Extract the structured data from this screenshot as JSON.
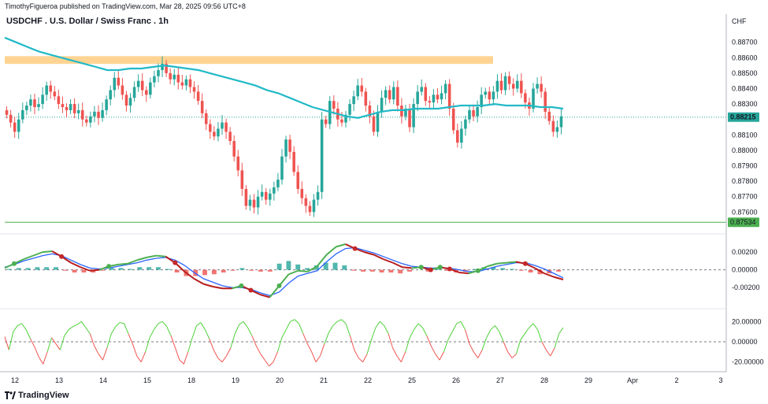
{
  "header": {
    "published": "TimothyFigueroa published on TradingView.com, Mar 28, 2025 09:56 UTC+8",
    "title": "USDCHF . U.S. Dollar / Swiss Franc . 1h",
    "currency": "CHF"
  },
  "footer": {
    "brand": "TradingView",
    "logo": "tradingview-logo-icon"
  },
  "colors": {
    "up": "#26a69a",
    "down": "#ef5350",
    "ma": "#22b9c7",
    "zone": "#ffcc80",
    "support": "#4caf50",
    "macd_fast": "#4caf50",
    "macd_slow": "#2962ff",
    "osc_up": "#4cd137",
    "osc_down": "#ef5350"
  },
  "chart_data": [
    {
      "type": "candlestick",
      "title": "USDCHF . U.S. Dollar / Swiss Franc . 1h",
      "ylim": [
        0.8753,
        0.8878
      ],
      "y_ticks": [
        0.887,
        0.886,
        0.885,
        0.884,
        0.883,
        0.882,
        0.881,
        0.88,
        0.879,
        0.878,
        0.877,
        0.876
      ],
      "y_tick_labels": [
        "0.88700",
        "0.88600",
        "0.88500",
        "0.88400",
        "0.88300",
        "0.88200",
        "0.88100",
        "0.88000",
        "0.87900",
        "0.87800",
        "0.87700",
        "0.87600"
      ],
      "x_labels": [
        "12",
        "13",
        "14",
        "15",
        "18",
        "19",
        "20",
        "21",
        "22",
        "25",
        "26",
        "27",
        "28",
        "29",
        "Apr",
        "2",
        "3"
      ],
      "last_price": 0.88215,
      "last_price_label": "0.88215",
      "support_line": 0.87534,
      "support_label": "0.87534",
      "resistance_zone": [
        0.8856,
        0.8861
      ],
      "close_path": [
        0.8823,
        0.8818,
        0.8812,
        0.882,
        0.8826,
        0.8829,
        0.8833,
        0.8828,
        0.883,
        0.8836,
        0.8842,
        0.8838,
        0.8835,
        0.883,
        0.8828,
        0.8826,
        0.883,
        0.8824,
        0.8826,
        0.882,
        0.8818,
        0.8822,
        0.8825,
        0.8821,
        0.8826,
        0.8833,
        0.8839,
        0.8847,
        0.8842,
        0.8836,
        0.8829,
        0.8834,
        0.8841,
        0.8845,
        0.8839,
        0.8836,
        0.8844,
        0.8848,
        0.8852,
        0.8856,
        0.885,
        0.8846,
        0.8849,
        0.8844,
        0.8842,
        0.8846,
        0.8841,
        0.8838,
        0.8832,
        0.8824,
        0.8817,
        0.8812,
        0.8809,
        0.8814,
        0.8818,
        0.8812,
        0.8806,
        0.8796,
        0.8787,
        0.8775,
        0.8764,
        0.8768,
        0.8763,
        0.877,
        0.8773,
        0.8768,
        0.8772,
        0.8776,
        0.8781,
        0.8796,
        0.8807,
        0.8799,
        0.8786,
        0.8775,
        0.8769,
        0.8764,
        0.876,
        0.8768,
        0.8773,
        0.882,
        0.8817,
        0.8832,
        0.8827,
        0.882,
        0.8818,
        0.8823,
        0.883,
        0.8835,
        0.8842,
        0.8838,
        0.8829,
        0.8822,
        0.8812,
        0.8825,
        0.8834,
        0.8839,
        0.8833,
        0.8841,
        0.8829,
        0.8822,
        0.8827,
        0.8815,
        0.883,
        0.8838,
        0.8841,
        0.8832,
        0.8831,
        0.8836,
        0.8833,
        0.8837,
        0.8843,
        0.8827,
        0.8813,
        0.8805,
        0.8814,
        0.882,
        0.8826,
        0.8822,
        0.8828,
        0.8836,
        0.8838,
        0.8833,
        0.8838,
        0.8845,
        0.8839,
        0.8848,
        0.8843,
        0.884,
        0.8845,
        0.8837,
        0.8831,
        0.8827,
        0.884,
        0.8843,
        0.8838,
        0.8825,
        0.8819,
        0.8812,
        0.8815,
        0.8822
      ],
      "ma_path": [
        0.8873,
        0.887,
        0.8867,
        0.8864,
        0.8862,
        0.886,
        0.8858,
        0.8856,
        0.8854,
        0.8852,
        0.8852,
        0.8853,
        0.8853,
        0.8854,
        0.8855,
        0.8854,
        0.8853,
        0.8852,
        0.885,
        0.8848,
        0.8846,
        0.8844,
        0.8842,
        0.8839,
        0.8837,
        0.8834,
        0.8831,
        0.8828,
        0.8826,
        0.8824,
        0.8822,
        0.8821,
        0.8823,
        0.8825,
        0.8826,
        0.8826,
        0.8827,
        0.8827,
        0.8827,
        0.8828,
        0.8829,
        0.8829,
        0.8829,
        0.883,
        0.8829,
        0.8829,
        0.8829,
        0.8828,
        0.8828,
        0.8827
      ]
    },
    {
      "type": "line",
      "name": "macd",
      "ylim": [
        -0.0035,
        0.0029
      ],
      "y_ticks": [
        0.002,
        0.0,
        -0.002
      ],
      "y_tick_labels": [
        "0.00200",
        "0.00000",
        "-0.00200"
      ],
      "fast": [
        0.0002,
        0.0007,
        0.0012,
        0.0016,
        0.002,
        0.0021,
        0.0015,
        0.0008,
        0.0003,
        -0.0001,
        0.0,
        0.0004,
        0.0006,
        0.0007,
        0.0011,
        0.0014,
        0.0016,
        0.0015,
        0.0008,
        -0.0002,
        -0.001,
        -0.0016,
        -0.0019,
        -0.0021,
        -0.0021,
        -0.0018,
        -0.0023,
        -0.0028,
        -0.0031,
        -0.0018,
        -0.0005,
        -0.0001,
        -0.0002,
        0.0004,
        0.0017,
        0.0026,
        0.0029,
        0.0024,
        0.002,
        0.0017,
        0.0012,
        0.0008,
        0.0003,
        0.0002,
        0.0003,
        0.0,
        0.0003,
        0.0001,
        -0.0003,
        -0.0004,
        -0.0001,
        0.0004,
        0.0007,
        0.0008,
        0.0009,
        0.0007,
        0.0002,
        -0.0004,
        -0.0008,
        -0.0011
      ],
      "slow": [
        0.0003,
        0.0006,
        0.001,
        0.0013,
        0.0016,
        0.0018,
        0.0016,
        0.0011,
        0.0006,
        0.0002,
        0.0001,
        0.0002,
        0.0004,
        0.0006,
        0.0008,
        0.0011,
        0.0013,
        0.0014,
        0.0011,
        0.0005,
        -0.0003,
        -0.001,
        -0.0014,
        -0.0018,
        -0.002,
        -0.002,
        -0.0022,
        -0.0026,
        -0.0029,
        -0.0025,
        -0.0015,
        -0.0007,
        -0.0004,
        -0.0001,
        0.0009,
        0.0018,
        0.0024,
        0.0025,
        0.0022,
        0.0019,
        0.0015,
        0.0011,
        0.0007,
        0.0004,
        0.0003,
        0.0002,
        0.0002,
        0.0002,
        0.0,
        -0.0002,
        -0.0002,
        0.0001,
        0.0004,
        0.0006,
        0.0008,
        0.0008,
        0.0005,
        0.0001,
        -0.0004,
        -0.0009
      ],
      "histogram": [
        0.0001,
        0.0002,
        0.0002,
        0.0003,
        0.0003,
        0.0003,
        -0.0001,
        -0.0003,
        -0.0003,
        -0.0003,
        -0.0001,
        0.0002,
        0.0002,
        0.0001,
        0.0003,
        0.0003,
        0.0003,
        0.0001,
        -0.0003,
        -0.0007,
        -0.0007,
        -0.0006,
        -0.0005,
        -0.0003,
        -0.0001,
        0.0002,
        -0.0001,
        -0.0002,
        -0.0002,
        0.0007,
        0.001,
        0.0006,
        0.0002,
        0.0005,
        0.0008,
        0.0008,
        0.0005,
        -0.0001,
        -0.0002,
        -0.0002,
        -0.0003,
        -0.0003,
        -0.0004,
        -0.0002,
        0.0,
        -0.0002,
        0.0001,
        -0.0001,
        -0.0003,
        -0.0002,
        0.0001,
        0.0003,
        0.0003,
        0.0002,
        0.0001,
        -0.0001,
        -0.0003,
        -0.0005,
        -0.0004,
        -0.0002
      ]
    },
    {
      "type": "line",
      "name": "oscillator",
      "ylim": [
        -28,
        28
      ],
      "y_ticks": [
        20,
        0,
        -20
      ],
      "y_tick_labels": [
        "20.00000",
        "0.00000",
        "-20.00000"
      ],
      "values": [
        5,
        -8,
        10,
        16,
        18,
        12,
        3,
        -5,
        -15,
        -22,
        -10,
        4,
        -2,
        -8,
        6,
        12,
        15,
        17,
        20,
        14,
        8,
        -4,
        -12,
        -18,
        -6,
        8,
        15,
        19,
        18,
        8,
        -2,
        -14,
        -20,
        -10,
        4,
        12,
        18,
        20,
        15,
        6,
        -6,
        -18,
        -22,
        -10,
        4,
        16,
        19,
        12,
        3,
        -8,
        -16,
        -20,
        -14,
        -6,
        8,
        17,
        20,
        14,
        6,
        -4,
        -12,
        -18,
        -24,
        -20,
        -10,
        4,
        12,
        20,
        22,
        18,
        8,
        -2,
        -10,
        -20,
        -14,
        -2,
        9,
        16,
        20,
        22,
        18,
        6,
        -8,
        -16,
        -20,
        -12,
        2,
        14,
        20,
        16,
        8,
        -6,
        -14,
        -20,
        -10,
        4,
        12,
        18,
        14,
        6,
        -4,
        -12,
        -18,
        -10,
        2,
        10,
        18,
        20,
        12,
        -2,
        -10,
        -16,
        -8,
        4,
        12,
        16,
        10,
        0,
        -10,
        -16,
        -12,
        2,
        8,
        14,
        18,
        12,
        0,
        -8,
        -14,
        -6,
        8,
        14
      ]
    }
  ]
}
